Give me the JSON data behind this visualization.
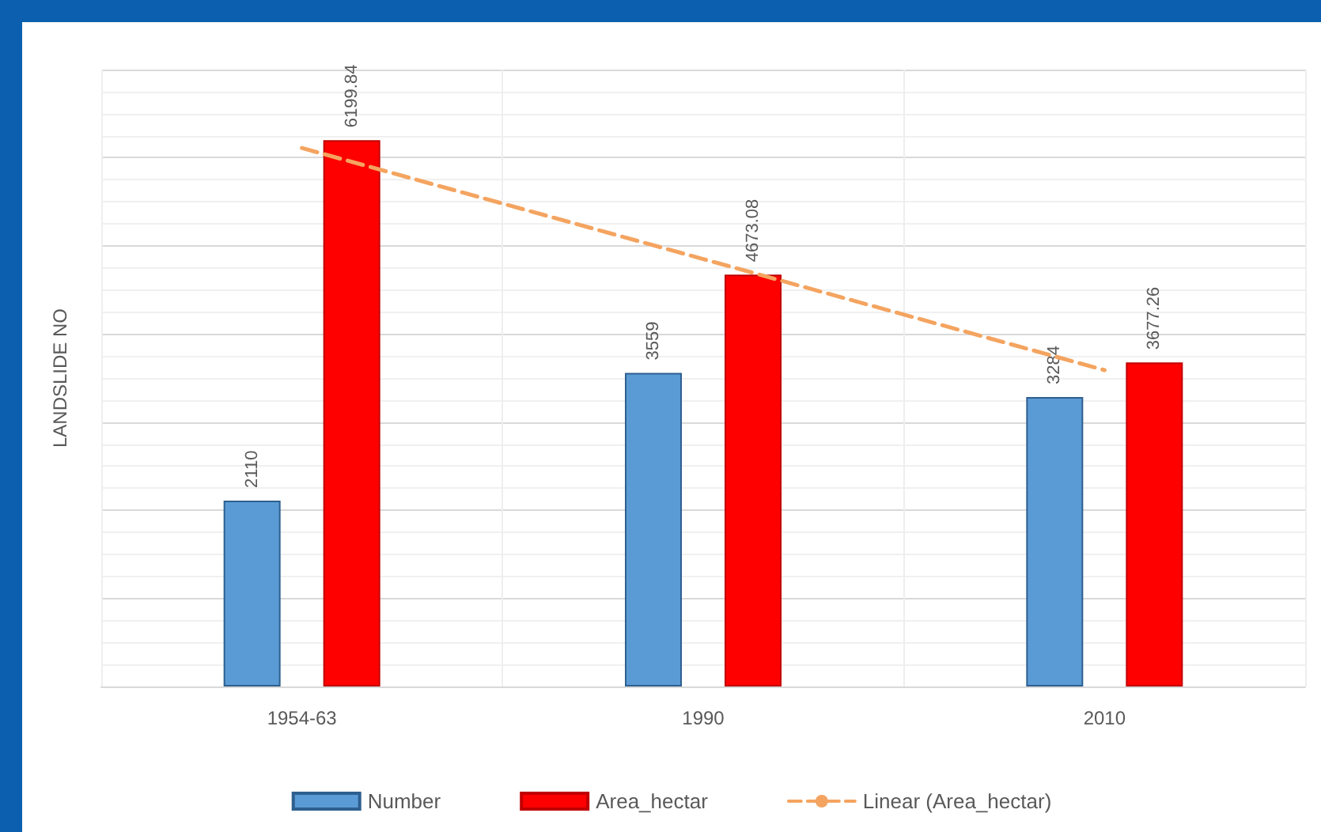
{
  "chart_data": {
    "type": "bar",
    "ylabel": "LANDSLIDE NO",
    "categories": [
      "1954-63",
      "1990",
      "2010"
    ],
    "series": [
      {
        "name": "Number",
        "color": "#5b9bd5",
        "values": [
          2110,
          3559,
          3284
        ],
        "value_labels": [
          "2110",
          "3559",
          "3284"
        ]
      },
      {
        "name": "Area_hectar",
        "color": "#ff0000",
        "values": [
          6199.84,
          4673.08,
          3677.26
        ],
        "value_labels": [
          "6199.84",
          "4673.08",
          "3677.26"
        ]
      },
      {
        "name": "Linear (Area_hectar)",
        "type": "line",
        "color": "#f4a460",
        "values": [
          6110,
          4850,
          3590
        ],
        "line_style": "dashed",
        "marker": "none"
      }
    ],
    "ylim": [
      0,
      7000
    ],
    "yticks": [
      {
        "value": 0,
        "label": null
      },
      {
        "value": 1000,
        "label": null
      },
      {
        "value": 2000,
        "label": null
      },
      {
        "value": 3000,
        "label": null
      },
      {
        "value": 4000,
        "label": null
      },
      {
        "value": 5000,
        "label": null
      },
      {
        "value": 6000,
        "label": null
      },
      {
        "value": 7000,
        "label": null
      }
    ],
    "tick_labels": "x",
    "grid": true,
    "legend": "bottom"
  }
}
